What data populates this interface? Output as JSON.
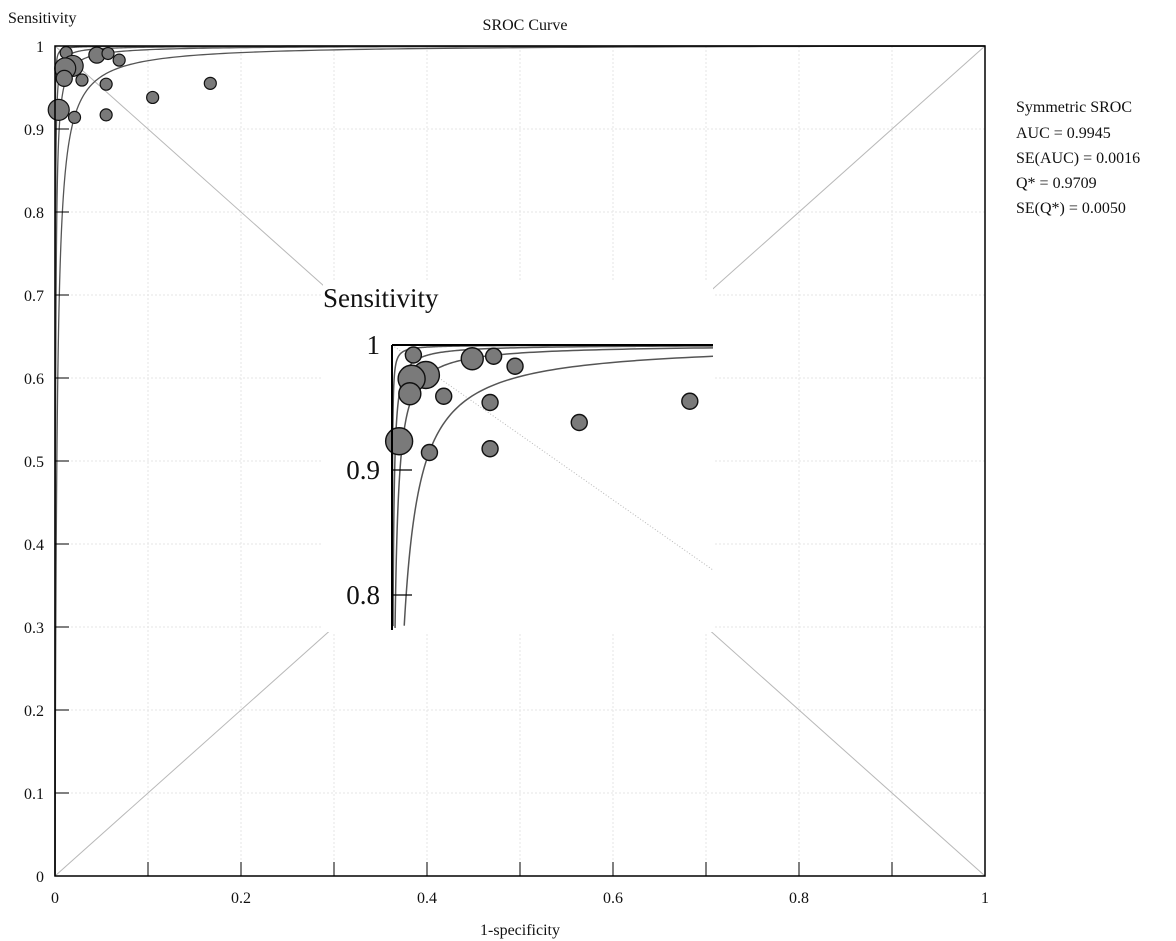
{
  "chart_data": {
    "type": "scatter",
    "title": "SROC Curve",
    "xlabel": "1-specificity",
    "ylabel": "Sensitivity",
    "xlim": [
      0,
      1
    ],
    "ylim": [
      0,
      1
    ],
    "x_ticks": [
      "0",
      "0.2",
      "0.4",
      "0.6",
      "0.8",
      "1"
    ],
    "y_ticks": [
      "0",
      "0.1",
      "0.2",
      "0.3",
      "0.4",
      "0.5",
      "0.6",
      "0.7",
      "0.8",
      "0.9",
      "1"
    ],
    "grid": true,
    "colors": {
      "points": "#7a7a7a",
      "curves": "#555555",
      "diagonals": "#b8b8b8",
      "axes": "#000000"
    },
    "points": [
      {
        "x": 0.012,
        "y": 0.992,
        "size": "small"
      },
      {
        "x": 0.045,
        "y": 0.989,
        "size": "medium"
      },
      {
        "x": 0.057,
        "y": 0.991,
        "size": "small"
      },
      {
        "x": 0.069,
        "y": 0.983,
        "size": "small"
      },
      {
        "x": 0.019,
        "y": 0.976,
        "size": "large"
      },
      {
        "x": 0.011,
        "y": 0.973,
        "size": "large"
      },
      {
        "x": 0.01,
        "y": 0.961,
        "size": "medium"
      },
      {
        "x": 0.029,
        "y": 0.959,
        "size": "small"
      },
      {
        "x": 0.055,
        "y": 0.954,
        "size": "small"
      },
      {
        "x": 0.105,
        "y": 0.938,
        "size": "small"
      },
      {
        "x": 0.167,
        "y": 0.955,
        "size": "small"
      },
      {
        "x": 0.004,
        "y": 0.923,
        "size": "large"
      },
      {
        "x": 0.021,
        "y": 0.914,
        "size": "small"
      },
      {
        "x": 0.055,
        "y": 0.917,
        "size": "small"
      }
    ],
    "curves": [
      {
        "dor": 30000
      },
      {
        "dor": 6000
      },
      {
        "dor": 2000
      },
      {
        "dor": 500
      }
    ],
    "stats": {
      "label": "Symmetric SROC",
      "auc": "AUC = 0.9945",
      "se_auc": "SE(AUC) = 0.0016",
      "q": "Q* = 0.9709",
      "se_q": "SE(Q*) = 0.0050"
    },
    "inset": {
      "ylabel": "Sensitivity",
      "y_ticks": [
        "0.8",
        "0.9",
        "1"
      ],
      "xlim": [
        0,
        0.18
      ],
      "ylim": [
        0.78,
        1.0
      ]
    }
  }
}
